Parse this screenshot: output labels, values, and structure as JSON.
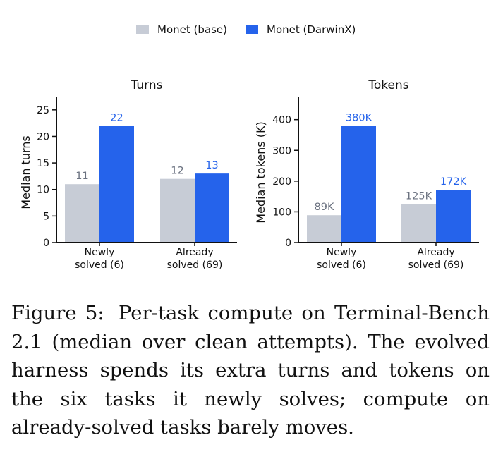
{
  "legend": {
    "items": [
      {
        "label": "Monet (base)",
        "color": "#c7ccd6"
      },
      {
        "label": "Monet (DarwinX)",
        "color": "#2563eb"
      }
    ]
  },
  "chart_data": [
    {
      "type": "bar",
      "title": "Turns",
      "ylabel": "Median turns",
      "xlabel": "",
      "categories": [
        "Newly\nsolved (6)",
        "Already\nsolved (69)"
      ],
      "ylim": [
        0,
        27.5
      ],
      "yticks": [
        0,
        5,
        10,
        15,
        20,
        25
      ],
      "series": [
        {
          "name": "Monet (base)",
          "values": [
            11,
            12
          ],
          "labels": [
            "11",
            "12"
          ],
          "color": "#c7ccd6",
          "label_color": "#6b7280"
        },
        {
          "name": "Monet (DarwinX)",
          "values": [
            22,
            13
          ],
          "labels": [
            "22",
            "13"
          ],
          "color": "#2563eb",
          "label_color": "#2563eb"
        }
      ]
    },
    {
      "type": "bar",
      "title": "Tokens",
      "ylabel": "Median tokens (K)",
      "xlabel": "",
      "categories": [
        "Newly\nsolved (6)",
        "Already\nsolved (69)"
      ],
      "ylim": [
        0,
        475
      ],
      "yticks": [
        0,
        100,
        200,
        300,
        400
      ],
      "series": [
        {
          "name": "Monet (base)",
          "values": [
            89,
            125
          ],
          "labels": [
            "89K",
            "125K"
          ],
          "color": "#c7ccd6",
          "label_color": "#6b7280"
        },
        {
          "name": "Monet (DarwinX)",
          "values": [
            380,
            172
          ],
          "labels": [
            "380K",
            "172K"
          ],
          "color": "#2563eb",
          "label_color": "#2563eb"
        }
      ]
    }
  ],
  "caption": {
    "label": "Figure 5:",
    "text": "Per-task compute on Terminal-Bench 2.1 (median over clean attempts). The evolved harness spends its extra turns and tokens on the six tasks it newly solves; compute on already-solved tasks barely moves."
  }
}
